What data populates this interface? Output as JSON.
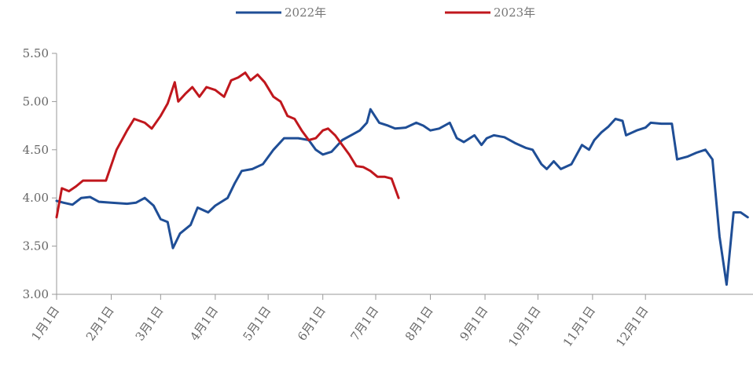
{
  "chart_data": {
    "type": "line",
    "x_axis": {
      "type": "date",
      "ticks": [
        "1月1日",
        "2月1日",
        "3月1日",
        "4月1日",
        "5月1日",
        "6月1日",
        "7月1日",
        "8月1日",
        "9月1日",
        "10月1日",
        "11月1日",
        "12月1日"
      ]
    },
    "y_axis": {
      "ylim": [
        3.0,
        5.5
      ],
      "ticks": [
        "3.00",
        "3.50",
        "4.00",
        "4.50",
        "5.00",
        "5.50"
      ]
    },
    "grid": false,
    "legend_position": "top-center",
    "series": [
      {
        "name": "2022年",
        "color": "#1f4e96",
        "points": [
          [
            "01-01",
            3.97
          ],
          [
            "01-05",
            3.95
          ],
          [
            "01-10",
            3.93
          ],
          [
            "01-15",
            4.0
          ],
          [
            "01-20",
            4.01
          ],
          [
            "01-25",
            3.96
          ],
          [
            "02-01",
            3.95
          ],
          [
            "02-10",
            3.94
          ],
          [
            "02-15",
            3.95
          ],
          [
            "02-20",
            4.0
          ],
          [
            "02-25",
            3.92
          ],
          [
            "03-01",
            3.78
          ],
          [
            "03-05",
            3.75
          ],
          [
            "03-08",
            3.48
          ],
          [
            "03-12",
            3.63
          ],
          [
            "03-18",
            3.72
          ],
          [
            "03-22",
            3.9
          ],
          [
            "03-28",
            3.85
          ],
          [
            "04-01",
            3.92
          ],
          [
            "04-08",
            4.0
          ],
          [
            "04-12",
            4.15
          ],
          [
            "04-16",
            4.28
          ],
          [
            "04-22",
            4.3
          ],
          [
            "04-28",
            4.35
          ],
          [
            "05-04",
            4.5
          ],
          [
            "05-10",
            4.62
          ],
          [
            "05-18",
            4.62
          ],
          [
            "05-24",
            4.6
          ],
          [
            "05-28",
            4.5
          ],
          [
            "06-01",
            4.45
          ],
          [
            "06-06",
            4.48
          ],
          [
            "06-12",
            4.6
          ],
          [
            "06-18",
            4.66
          ],
          [
            "06-22",
            4.7
          ],
          [
            "06-26",
            4.78
          ],
          [
            "06-28",
            4.92
          ],
          [
            "07-03",
            4.78
          ],
          [
            "07-08",
            4.75
          ],
          [
            "07-12",
            4.72
          ],
          [
            "07-18",
            4.73
          ],
          [
            "07-24",
            4.78
          ],
          [
            "07-28",
            4.75
          ],
          [
            "08-01",
            4.7
          ],
          [
            "08-06",
            4.72
          ],
          [
            "08-12",
            4.78
          ],
          [
            "08-16",
            4.62
          ],
          [
            "08-20",
            4.58
          ],
          [
            "08-26",
            4.65
          ],
          [
            "08-30",
            4.55
          ],
          [
            "09-02",
            4.62
          ],
          [
            "09-06",
            4.65
          ],
          [
            "09-12",
            4.63
          ],
          [
            "09-18",
            4.57
          ],
          [
            "09-24",
            4.52
          ],
          [
            "09-28",
            4.5
          ],
          [
            "10-03",
            4.35
          ],
          [
            "10-06",
            4.3
          ],
          [
            "10-10",
            4.38
          ],
          [
            "10-14",
            4.3
          ],
          [
            "10-20",
            4.35
          ],
          [
            "10-26",
            4.55
          ],
          [
            "10-30",
            4.5
          ],
          [
            "11-02",
            4.6
          ],
          [
            "11-06",
            4.68
          ],
          [
            "11-10",
            4.74
          ],
          [
            "11-14",
            4.82
          ],
          [
            "11-18",
            4.8
          ],
          [
            "11-20",
            4.65
          ],
          [
            "11-26",
            4.7
          ],
          [
            "12-01",
            4.73
          ],
          [
            "12-04",
            4.78
          ],
          [
            "12-10",
            4.77
          ],
          [
            "12-16",
            4.77
          ],
          [
            "12-19",
            4.4
          ],
          [
            "12-25",
            4.43
          ],
          [
            "12-30",
            4.47
          ],
          [
            "01-04",
            4.5
          ],
          [
            "01-08",
            4.4
          ],
          [
            "01-12",
            3.6
          ],
          [
            "01-16",
            3.1
          ],
          [
            "01-20",
            3.85
          ],
          [
            "01-24",
            3.85
          ],
          [
            "01-28",
            3.8
          ]
        ]
      },
      {
        "name": "2023年",
        "color": "#c0171d",
        "points": [
          [
            "01-01",
            3.8
          ],
          [
            "01-04",
            4.1
          ],
          [
            "01-08",
            4.07
          ],
          [
            "01-12",
            4.12
          ],
          [
            "01-16",
            4.18
          ],
          [
            "01-24",
            4.18
          ],
          [
            "01-29",
            4.18
          ],
          [
            "02-04",
            4.5
          ],
          [
            "02-10",
            4.7
          ],
          [
            "02-14",
            4.82
          ],
          [
            "02-20",
            4.78
          ],
          [
            "02-24",
            4.72
          ],
          [
            "03-01",
            4.85
          ],
          [
            "03-05",
            4.98
          ],
          [
            "03-09",
            5.2
          ],
          [
            "03-11",
            5.0
          ],
          [
            "03-15",
            5.08
          ],
          [
            "03-19",
            5.15
          ],
          [
            "03-23",
            5.05
          ],
          [
            "03-27",
            5.15
          ],
          [
            "04-01",
            5.12
          ],
          [
            "04-06",
            5.05
          ],
          [
            "04-10",
            5.22
          ],
          [
            "04-14",
            5.25
          ],
          [
            "04-18",
            5.3
          ],
          [
            "04-21",
            5.22
          ],
          [
            "04-25",
            5.28
          ],
          [
            "04-29",
            5.2
          ],
          [
            "05-04",
            5.05
          ],
          [
            "05-08",
            5.0
          ],
          [
            "05-12",
            4.85
          ],
          [
            "05-16",
            4.82
          ],
          [
            "05-20",
            4.7
          ],
          [
            "05-24",
            4.6
          ],
          [
            "05-28",
            4.62
          ],
          [
            "06-01",
            4.7
          ],
          [
            "06-04",
            4.72
          ],
          [
            "06-08",
            4.65
          ],
          [
            "06-12",
            4.55
          ],
          [
            "06-16",
            4.45
          ],
          [
            "06-20",
            4.33
          ],
          [
            "06-24",
            4.32
          ],
          [
            "06-28",
            4.28
          ],
          [
            "07-02",
            4.22
          ],
          [
            "07-06",
            4.22
          ],
          [
            "07-10",
            4.2
          ],
          [
            "07-14",
            4.0
          ]
        ]
      }
    ]
  }
}
